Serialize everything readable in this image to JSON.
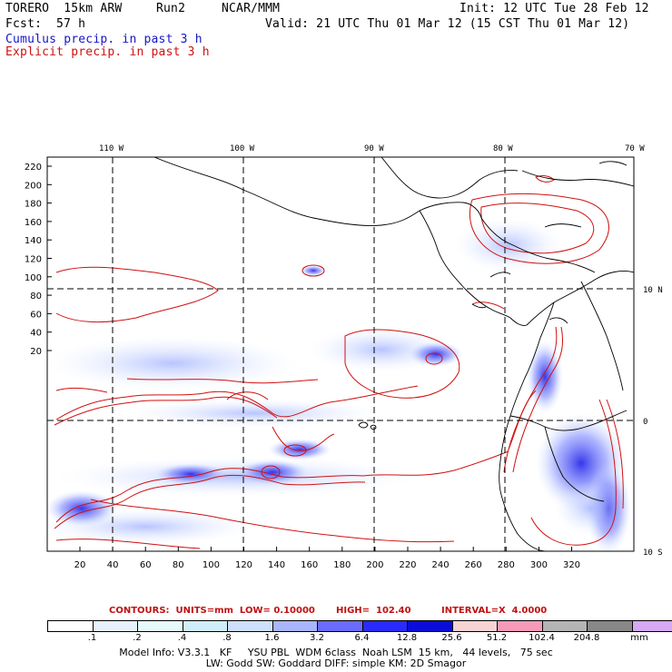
{
  "header": {
    "model": "TORERO  15km ARW",
    "run": "Run2",
    "org": "NCAR/MMM",
    "init": "Init: 12 UTC Tue 28 Feb 12",
    "fcst_label": "Fcst:",
    "fcst_value": "57 h",
    "valid": "Valid: 21 UTC Thu 01 Mar 12 (15 CST Thu 01 Mar 12)",
    "field1": "Cumulus precip. in past 3 h",
    "field2": "Explicit precip. in past 3 h"
  },
  "map": {
    "top_lon_labels": [
      "110 W",
      "100 W",
      "90 W",
      "80 W",
      "70 W"
    ],
    "right_lat_labels": [
      "10 N",
      "0",
      "10 S"
    ],
    "y_ticks": [
      "220",
      "200",
      "180",
      "160",
      "140",
      "120",
      "100",
      "80",
      "60",
      "40",
      "20"
    ],
    "x_ticks": [
      "20",
      "40",
      "60",
      "80",
      "100",
      "120",
      "140",
      "160",
      "180",
      "200",
      "220",
      "240",
      "260",
      "280",
      "300",
      "320"
    ],
    "colors": {
      "coast": "#000000",
      "explicit_contour": "#d01010",
      "grid": "#000000"
    }
  },
  "legend": {
    "contours_label": "CONTOURS:  UNITS=mm  LOW= 0.10000",
    "high_label": "HIGH=  102.40",
    "interval_label": "INTERVAL=X  4.0000",
    "bins": [
      "#ffffff",
      "#e6f0ff",
      "#e6f9fb",
      "#cfeefa",
      "#cfe0ff",
      "#a9b5ff",
      "#6b6bff",
      "#2a2aff",
      "#0c0cd8",
      "#f7d4d4",
      "#f79aba",
      "#b4b4b4",
      "#888888",
      "#d8a8f2"
    ],
    "tick_labels": [
      ".1",
      ".2",
      ".4",
      ".8",
      "1.6",
      "3.2",
      "6.4",
      "12.8",
      "25.6",
      "51.2",
      "102.4",
      "204.8"
    ],
    "units": "mm"
  },
  "footer": {
    "line1": "Model Info: V3.3.1   KF     YSU PBL  WDM 6class  Noah LSM  15 km,   44 levels,   75 sec",
    "line2": "LW: Godd SW: Goddard DIFF: simple KM: 2D Smagor"
  }
}
